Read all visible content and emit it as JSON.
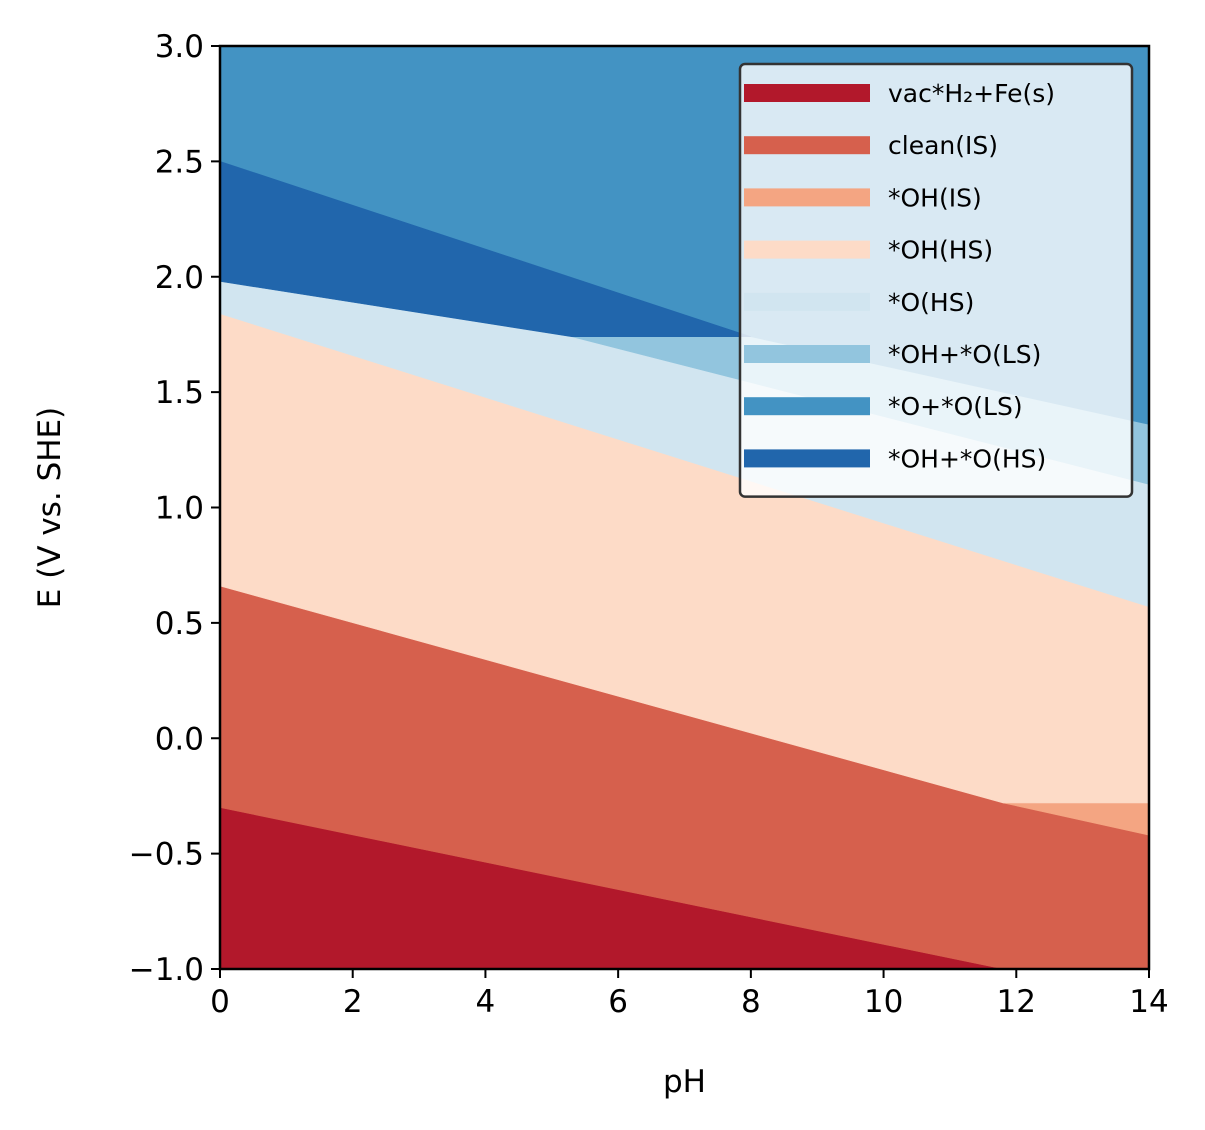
{
  "chart_data": {
    "type": "area",
    "title": "",
    "xlabel": "pH",
    "ylabel": "E (V vs. SHE)",
    "xlim": [
      0,
      14
    ],
    "ylim": [
      -1.0,
      3.0
    ],
    "xticks": [
      "0",
      "2",
      "4",
      "6",
      "8",
      "10",
      "12",
      "14"
    ],
    "yticks": [
      "−1.0",
      "−0.5",
      "0.0",
      "0.5",
      "1.0",
      "1.5",
      "2.0",
      "2.5",
      "3.0"
    ],
    "grid": false,
    "legend_position": "top-right",
    "legend": [
      {
        "label": "vac*H₂+Fe(s)",
        "color": "#b2182b"
      },
      {
        "label": "clean(IS)",
        "color": "#d6604d"
      },
      {
        "label": "*OH(IS)",
        "color": "#f4a582"
      },
      {
        "label": "*OH(HS)",
        "color": "#fddbc7"
      },
      {
        "label": "*O(HS)",
        "color": "#d1e5f0"
      },
      {
        "label": "*OH+*O(LS)",
        "color": "#92c5de"
      },
      {
        "label": "*O+*O(LS)",
        "color": "#4393c3"
      },
      {
        "label": "*OH+*O(HS)",
        "color": "#2166ac"
      }
    ],
    "regions": [
      {
        "name": "vac*H₂+Fe(s)",
        "color": "#b2182b",
        "points": [
          [
            0,
            -1.0
          ],
          [
            0,
            -0.3
          ],
          [
            11.8,
            -1.0
          ]
        ]
      },
      {
        "name": "clean(IS)",
        "color": "#d6604d",
        "points": [
          [
            0,
            -0.3
          ],
          [
            0,
            0.66
          ],
          [
            11.8,
            -0.24
          ],
          [
            14,
            -0.42
          ],
          [
            14,
            -1.0
          ],
          [
            11.8,
            -1.0
          ]
        ]
      },
      {
        "name": "*OH(IS)",
        "color": "#f4a582",
        "points": [
          [
            11.8,
            -0.28
          ],
          [
            14,
            -0.28
          ],
          [
            14,
            -0.42
          ]
        ]
      },
      {
        "name": "*OH(HS)",
        "color": "#fddbc7",
        "points": [
          [
            0,
            0.66
          ],
          [
            0,
            1.84
          ],
          [
            14,
            0.57
          ],
          [
            14,
            -0.28
          ],
          [
            11.8,
            -0.28
          ]
        ]
      },
      {
        "name": "*O(HS)",
        "color": "#d1e5f0",
        "points": [
          [
            0,
            1.84
          ],
          [
            0,
            1.98
          ],
          [
            5.3,
            1.74
          ],
          [
            14,
            1.1
          ],
          [
            14,
            0.57
          ]
        ]
      },
      {
        "name": "*OH+*O(LS)",
        "color": "#92c5de",
        "points": [
          [
            5.3,
            1.74
          ],
          [
            8.0,
            1.74
          ],
          [
            14,
            1.36
          ],
          [
            14,
            1.1
          ]
        ]
      },
      {
        "name": "*O+*O(LS)",
        "color": "#4393c3",
        "points": [
          [
            0,
            2.5
          ],
          [
            0,
            3.0
          ],
          [
            14,
            3.0
          ],
          [
            14,
            1.36
          ],
          [
            8.0,
            1.74
          ]
        ]
      },
      {
        "name": "*OH+*O(HS)",
        "color": "#2166ac",
        "points": [
          [
            0,
            1.98
          ],
          [
            0,
            2.5
          ],
          [
            8.0,
            1.74
          ],
          [
            5.3,
            1.74
          ]
        ]
      }
    ]
  }
}
